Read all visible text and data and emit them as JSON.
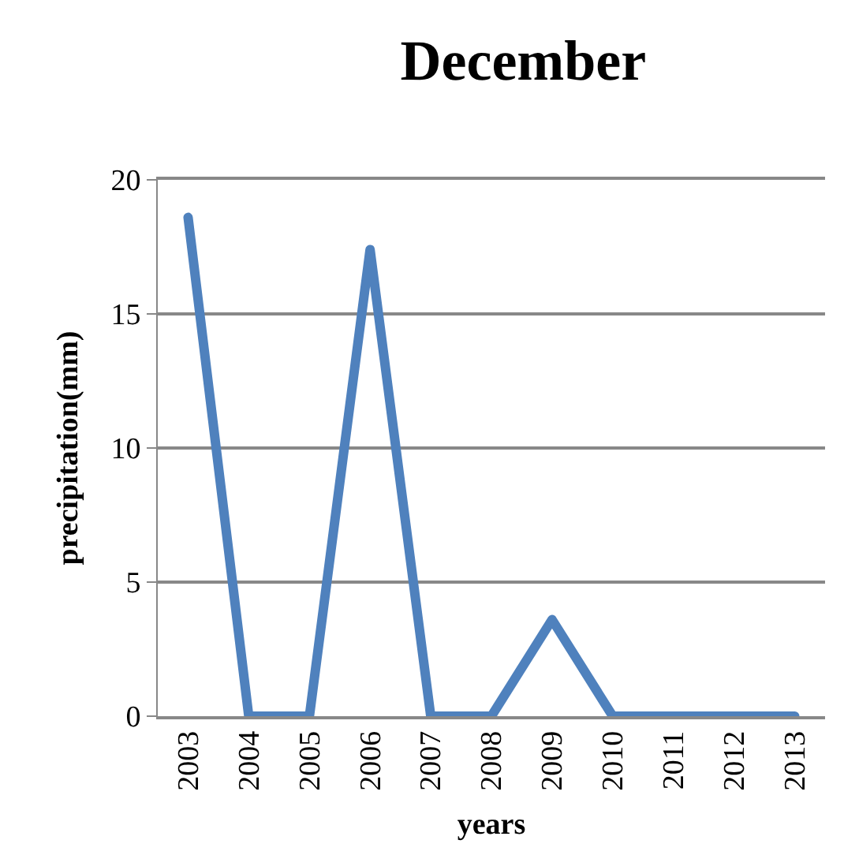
{
  "chart_data": {
    "type": "line",
    "title": "December",
    "xlabel": "years",
    "ylabel": "precipitation(mm)",
    "categories": [
      "2003",
      "2004",
      "2005",
      "2006",
      "2007",
      "2008",
      "2009",
      "2010",
      "2011",
      "2012",
      "2013"
    ],
    "series": [
      {
        "color": "#4f81bd",
        "values": [
          18.6,
          0,
          0,
          17.4,
          0,
          0,
          3.6,
          0,
          0,
          0,
          0
        ]
      }
    ],
    "ylim": [
      0,
      20
    ],
    "yticks": [
      0,
      5,
      10,
      15,
      20
    ],
    "grid": "y",
    "marker": "none",
    "line_style": "solid"
  }
}
